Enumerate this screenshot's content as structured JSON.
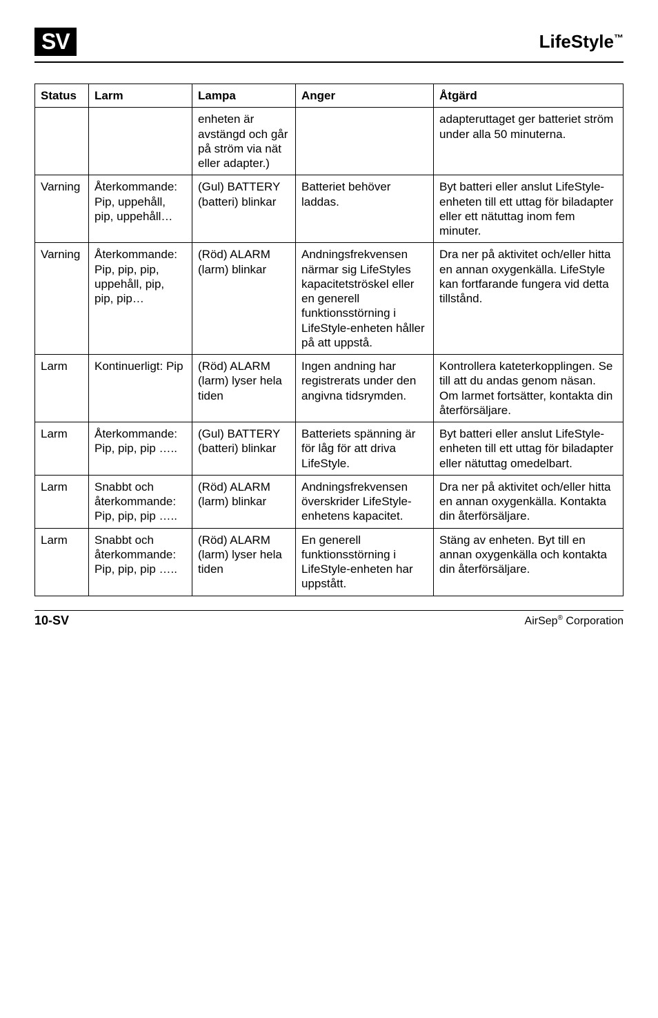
{
  "header": {
    "badge": "SV",
    "brand": "LifeStyle",
    "brand_tm": "™"
  },
  "columns": {
    "status": "Status",
    "larm": "Larm",
    "lampa": "Lampa",
    "anger": "Anger",
    "atgard": "Åtgärd"
  },
  "rows": [
    {
      "status": "",
      "larm": "",
      "lampa": "enheten är avstängd och går på ström via nät eller adapter.)",
      "anger": "",
      "atgard": "adapteruttaget ger batteriet ström under alla 50 minuterna."
    },
    {
      "status": "Varning",
      "larm": "Återkommande: Pip, uppehåll, pip, uppehåll…",
      "lampa": "(Gul) BATTERY (batteri) blinkar",
      "anger": "Batteriet behöver laddas.",
      "atgard": "Byt batteri eller anslut LifeStyle-enheten till ett uttag för biladapter eller ett nätuttag inom fem minuter."
    },
    {
      "status": "Varning",
      "larm": "Återkommande: Pip, pip, pip, uppehåll, pip, pip, pip…",
      "lampa": "(Röd) ALARM (larm) blinkar",
      "anger": "Andningsfrekvensen närmar sig LifeStyles kapacitetströskel eller en generell funktionsstörning i LifeStyle-enheten håller på att uppstå.",
      "atgard": "Dra ner på aktivitet och/eller hitta en annan oxygenkälla. LifeStyle kan fortfarande fungera vid detta tillstånd."
    },
    {
      "status": "Larm",
      "larm": "Kontinuerligt: Pip",
      "lampa": "(Röd) ALARM (larm) lyser hela tiden",
      "anger": "Ingen andning har registrerats under den angivna tidsrymden.",
      "atgard": "Kontrollera kateterkopplingen. Se till att du andas genom näsan. Om larmet fortsätter, kontakta din återförsäljare."
    },
    {
      "status": "Larm",
      "larm": "Återkommande: Pip, pip, pip …..",
      "lampa": "(Gul) BATTERY (batteri) blinkar",
      "anger": "Batteriets spänning är för låg för att driva LifeStyle.",
      "atgard": "Byt batteri eller anslut LifeStyle-enheten till ett uttag för biladapter eller nätuttag omedelbart."
    },
    {
      "status": "Larm",
      "larm": "Snabbt och återkommande: Pip, pip, pip …..",
      "lampa": "(Röd) ALARM (larm) blinkar",
      "anger": "Andningsfrekvensen överskrider LifeStyle-enhetens kapacitet.",
      "atgard": "Dra ner på aktivitet och/eller hitta en annan oxygenkälla. Kontakta din återförsäljare."
    },
    {
      "status": "Larm",
      "larm": "Snabbt och återkommande: Pip, pip, pip …..",
      "lampa": "(Röd) ALARM (larm) lyser hela tiden",
      "anger": "En generell funktionsstörning i LifeStyle-enheten har uppstått.",
      "atgard": "Stäng av enheten. Byt till en annan oxygenkälla och kontakta din återförsäljare."
    }
  ],
  "footer": {
    "page": "10-SV",
    "corp": "AirSep",
    "reg": "®",
    "corp_suffix": " Corporation"
  }
}
